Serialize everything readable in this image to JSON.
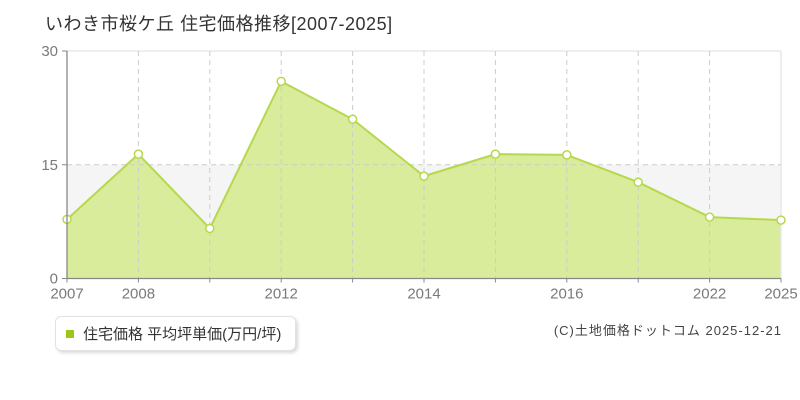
{
  "title": "いわき市桜ケ丘 住宅価格推移[2007-2025]",
  "legend": {
    "marker_color": "#9cc715",
    "label": "住宅価格 平均坪単価(万円/坪)"
  },
  "footer": {
    "copyright": "(C)土地価格ドットコム 2025-12-21"
  },
  "chart_data": {
    "type": "area",
    "title": "いわき市桜ケ丘 住宅価格推移[2007-2025]",
    "series_name": "住宅価格 平均坪単価(万円/坪)",
    "x_tick_labels": [
      "2007",
      "2008",
      "",
      "2012",
      "",
      "2014",
      "",
      "2016",
      "",
      "2022",
      "2025"
    ],
    "values": [
      7.8,
      16.4,
      6.6,
      26.0,
      21.0,
      13.5,
      16.4,
      16.3,
      12.7,
      8.1,
      7.7
    ],
    "ylim": [
      0,
      30
    ],
    "y_ticks": [
      0,
      15,
      30
    ],
    "y_tick_labels": [
      "0",
      "15",
      "30"
    ],
    "ylabel": "",
    "xlabel": "",
    "grid": "dashed",
    "legend_position": "bottom-left",
    "colors": {
      "line": "#b6d84f",
      "fill": "#d9ec9b",
      "marker_fill": "#ffffff",
      "band_low": "#f5f5f5",
      "grid": "#cccccc",
      "axis": "#888888",
      "border": "#e8e8e8"
    }
  }
}
